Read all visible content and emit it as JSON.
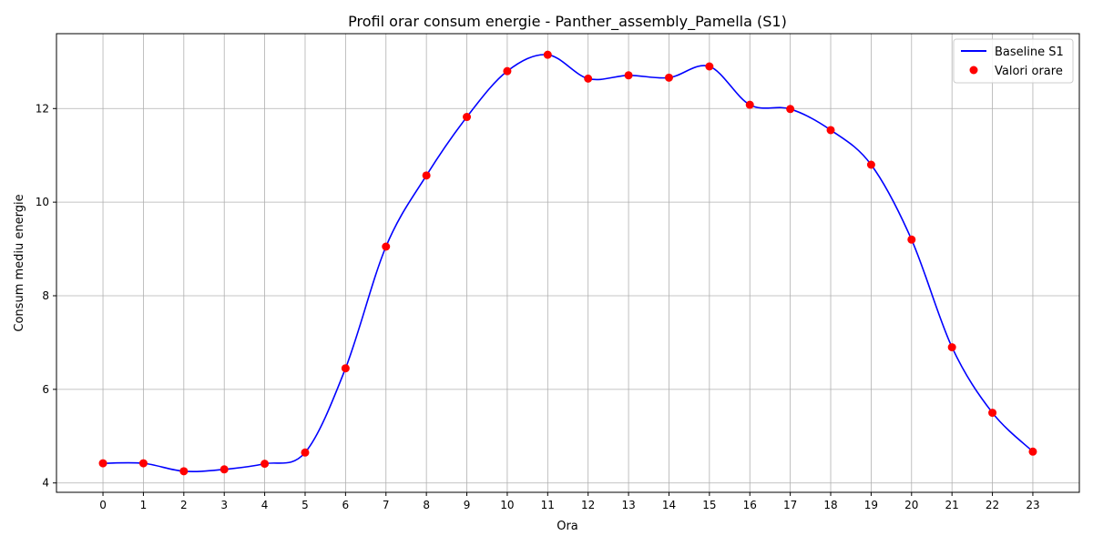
{
  "chart_data": {
    "type": "line",
    "title": "Profil orar consum energie - Panther_assembly_Pamella (S1)",
    "xlabel": "Ora",
    "ylabel": "Consum mediu energie",
    "x": [
      0,
      1,
      2,
      3,
      4,
      5,
      6,
      7,
      8,
      9,
      10,
      11,
      12,
      13,
      14,
      15,
      16,
      17,
      18,
      19,
      20,
      21,
      22,
      23
    ],
    "xlim": [
      -1.15,
      24.15
    ],
    "ylim": [
      3.8,
      13.6
    ],
    "yticks": [
      4,
      6,
      8,
      10,
      12
    ],
    "grid": true,
    "legend_position": "top-right",
    "series": [
      {
        "name": "Baseline S1",
        "kind": "smooth-line",
        "color": "#0000ff",
        "values": [
          4.42,
          4.42,
          4.25,
          4.29,
          4.41,
          4.65,
          6.45,
          9.05,
          10.57,
          11.82,
          12.8,
          13.15,
          12.64,
          12.71,
          12.66,
          12.9,
          12.08,
          11.99,
          11.54,
          10.8,
          9.2,
          6.9,
          5.5,
          4.67
        ]
      },
      {
        "name": "Valori orare",
        "kind": "scatter",
        "color": "#ff0000",
        "values": [
          4.42,
          4.42,
          4.25,
          4.29,
          4.41,
          4.65,
          6.45,
          9.05,
          10.57,
          11.82,
          12.8,
          13.15,
          12.64,
          12.71,
          12.66,
          12.9,
          12.08,
          11.99,
          11.54,
          10.8,
          9.2,
          6.9,
          5.5,
          4.67
        ]
      }
    ]
  }
}
